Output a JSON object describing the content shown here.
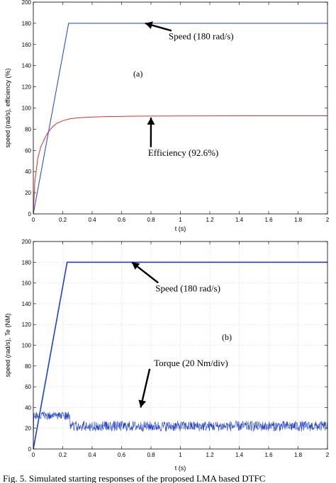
{
  "caption": "Fig. 5. Simulated starting responses of the proposed LMA based DTFC",
  "chart_data": [
    {
      "type": "line",
      "panel_label": "(a)",
      "xlabel": "t (s)",
      "ylabel": "speed (rad/s), efficiency (%)",
      "xlim": [
        0,
        2
      ],
      "ylim": [
        0,
        200
      ],
      "x_ticks": [
        "0",
        "0.2",
        "0.4",
        "0.6",
        "0.8",
        "1",
        "1.2",
        "1.4",
        "1.6",
        "1.8",
        "2"
      ],
      "y_ticks": [
        "0",
        "20",
        "40",
        "60",
        "80",
        "100",
        "120",
        "140",
        "160",
        "180",
        "200"
      ],
      "grid": false,
      "series": [
        {
          "key": "speed",
          "color": "#1f3fd0",
          "x": [
            0,
            0.24,
            2
          ],
          "y": [
            0,
            180,
            180
          ]
        },
        {
          "key": "efficiency",
          "color": "#e03030",
          "x": [
            0,
            0.01,
            0.03,
            0.05,
            0.08,
            0.1,
            0.13,
            0.16,
            0.2,
            0.25,
            0.3,
            0.4,
            0.5,
            0.7,
            1.0,
            1.5,
            2.0
          ],
          "y": [
            0,
            30,
            52,
            63,
            72,
            77,
            82,
            85.5,
            88,
            89.8,
            90.7,
            91.5,
            91.9,
            92.3,
            92.5,
            92.6,
            92.6
          ]
        }
      ],
      "annotations": [
        {
          "text": "Speed (180 rad/s)",
          "x": 0.92,
          "y": 165,
          "arrow_to": [
            0.76,
            180
          ]
        },
        {
          "text": "Efficiency (92.6%)",
          "x": 0.78,
          "y": 55,
          "arrow_to": [
            0.8,
            91
          ]
        }
      ]
    },
    {
      "type": "line",
      "panel_label": "(b)",
      "xlabel": "t (s)",
      "ylabel": "speed (rad/s), Te (NM)",
      "xlim": [
        0,
        2
      ],
      "ylim": [
        0,
        200
      ],
      "x_ticks": [
        "0",
        "0.2",
        "0.4",
        "0.6",
        "0.8",
        "1",
        "1.2",
        "1.4",
        "1.6",
        "1.8",
        "2"
      ],
      "y_ticks": [
        "0",
        "20",
        "40",
        "60",
        "80",
        "100",
        "120",
        "140",
        "160",
        "180",
        "200"
      ],
      "grid": true,
      "series": [
        {
          "key": "speed",
          "color": "#1f3fd0",
          "x": [
            0,
            0.23,
            2
          ],
          "y": [
            0,
            180,
            180
          ]
        },
        {
          "key": "torque",
          "color": "#1f3fd0",
          "segments": [
            {
              "x0": 0,
              "x1": 0.25,
              "mean": 32,
              "amplitude": 4
            },
            {
              "x0": 0.25,
              "x1": 2,
              "mean": 22,
              "amplitude": 5
            }
          ]
        }
      ],
      "annotations": [
        {
          "text": "Speed (180 rad/s)",
          "x": 0.83,
          "y": 152,
          "arrow_to": [
            0.67,
            180
          ]
        },
        {
          "text": "Torque (20 Nm/div)",
          "x": 0.82,
          "y": 80,
          "arrow_to": [
            0.73,
            40
          ]
        }
      ]
    }
  ]
}
